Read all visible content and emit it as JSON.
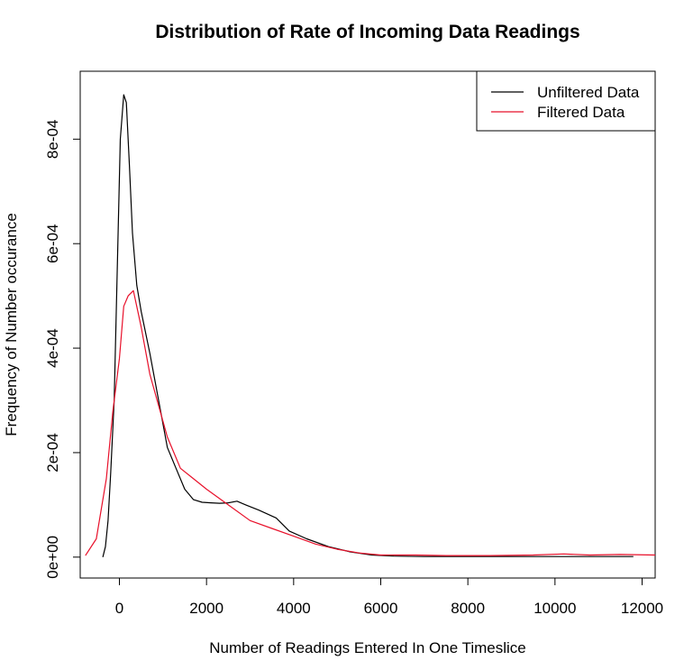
{
  "chart_data": {
    "type": "line",
    "title": "Distribution of Rate of Incoming Data Readings",
    "xlabel": "Number of Readings Entered In One Timeslice",
    "ylabel": "Frequency of Number occurance",
    "xlim": [
      -900,
      12300
    ],
    "ylim": [
      -4e-05,
      0.00093
    ],
    "x_ticks": [
      0,
      2000,
      4000,
      6000,
      8000,
      10000,
      12000
    ],
    "x_tick_labels": [
      "0",
      "2000",
      "4000",
      "6000",
      "8000",
      "10000",
      "12000"
    ],
    "y_ticks": [
      0,
      0.0002,
      0.0004,
      0.0006,
      0.0008
    ],
    "y_tick_labels": [
      "0e+00",
      "2e-04",
      "4e-04",
      "6e-04",
      "8e-04"
    ],
    "legend_position": "top-right",
    "grid": false,
    "series": [
      {
        "name": "Unfiltered Data",
        "color": "#000000",
        "points": [
          [
            -380,
            0.0
          ],
          [
            -320,
            2e-05
          ],
          [
            -260,
            7e-05
          ],
          [
            -200,
            0.00016
          ],
          [
            -120,
            0.0003
          ],
          [
            -50,
            0.00055
          ],
          [
            20,
            0.0008
          ],
          [
            100,
            0.000885
          ],
          [
            160,
            0.00087
          ],
          [
            230,
            0.00075
          ],
          [
            300,
            0.00062
          ],
          [
            400,
            0.00052
          ],
          [
            500,
            0.00047
          ],
          [
            700,
            0.00039
          ],
          [
            900,
            0.0003
          ],
          [
            1100,
            0.00021
          ],
          [
            1300,
            0.00017
          ],
          [
            1500,
            0.00013
          ],
          [
            1700,
            0.00011
          ],
          [
            1900,
            0.000105
          ],
          [
            2100,
            0.000104
          ],
          [
            2300,
            0.000103
          ],
          [
            2500,
            0.000104
          ],
          [
            2700,
            0.000107
          ],
          [
            2900,
            0.0001
          ],
          [
            3200,
            9e-05
          ],
          [
            3600,
            7.5e-05
          ],
          [
            3900,
            5e-05
          ],
          [
            4300,
            3.5e-05
          ],
          [
            4800,
            2e-05
          ],
          [
            5300,
            1e-05
          ],
          [
            5800,
            4e-06
          ],
          [
            6300,
            2e-06
          ],
          [
            7000,
            1e-06
          ],
          [
            9000,
            1e-06
          ],
          [
            11800,
            1e-06
          ]
        ]
      },
      {
        "name": "Filtered Data",
        "color": "#e8102a",
        "points": [
          [
            -780,
            3e-06
          ],
          [
            -530,
            3.5e-05
          ],
          [
            -300,
            0.00015
          ],
          [
            -150,
            0.00028
          ],
          [
            0,
            0.00038
          ],
          [
            100,
            0.00048
          ],
          [
            200,
            0.0005
          ],
          [
            320,
            0.00051
          ],
          [
            500,
            0.00044
          ],
          [
            700,
            0.00035
          ],
          [
            900,
            0.00029
          ],
          [
            1100,
            0.00023
          ],
          [
            1400,
            0.00017
          ],
          [
            1700,
            0.00015
          ],
          [
            2000,
            0.00013
          ],
          [
            2500,
            0.0001
          ],
          [
            3000,
            7e-05
          ],
          [
            3500,
            5.5e-05
          ],
          [
            4000,
            4e-05
          ],
          [
            4500,
            2.5e-05
          ],
          [
            5000,
            1.5e-05
          ],
          [
            5500,
            8e-06
          ],
          [
            6000,
            4e-06
          ],
          [
            6800,
            4e-06
          ],
          [
            7500,
            3e-06
          ],
          [
            8500,
            3e-06
          ],
          [
            9500,
            4e-06
          ],
          [
            10200,
            6e-06
          ],
          [
            10800,
            4e-06
          ],
          [
            11500,
            5e-06
          ],
          [
            12300,
            4e-06
          ]
        ]
      }
    ]
  }
}
